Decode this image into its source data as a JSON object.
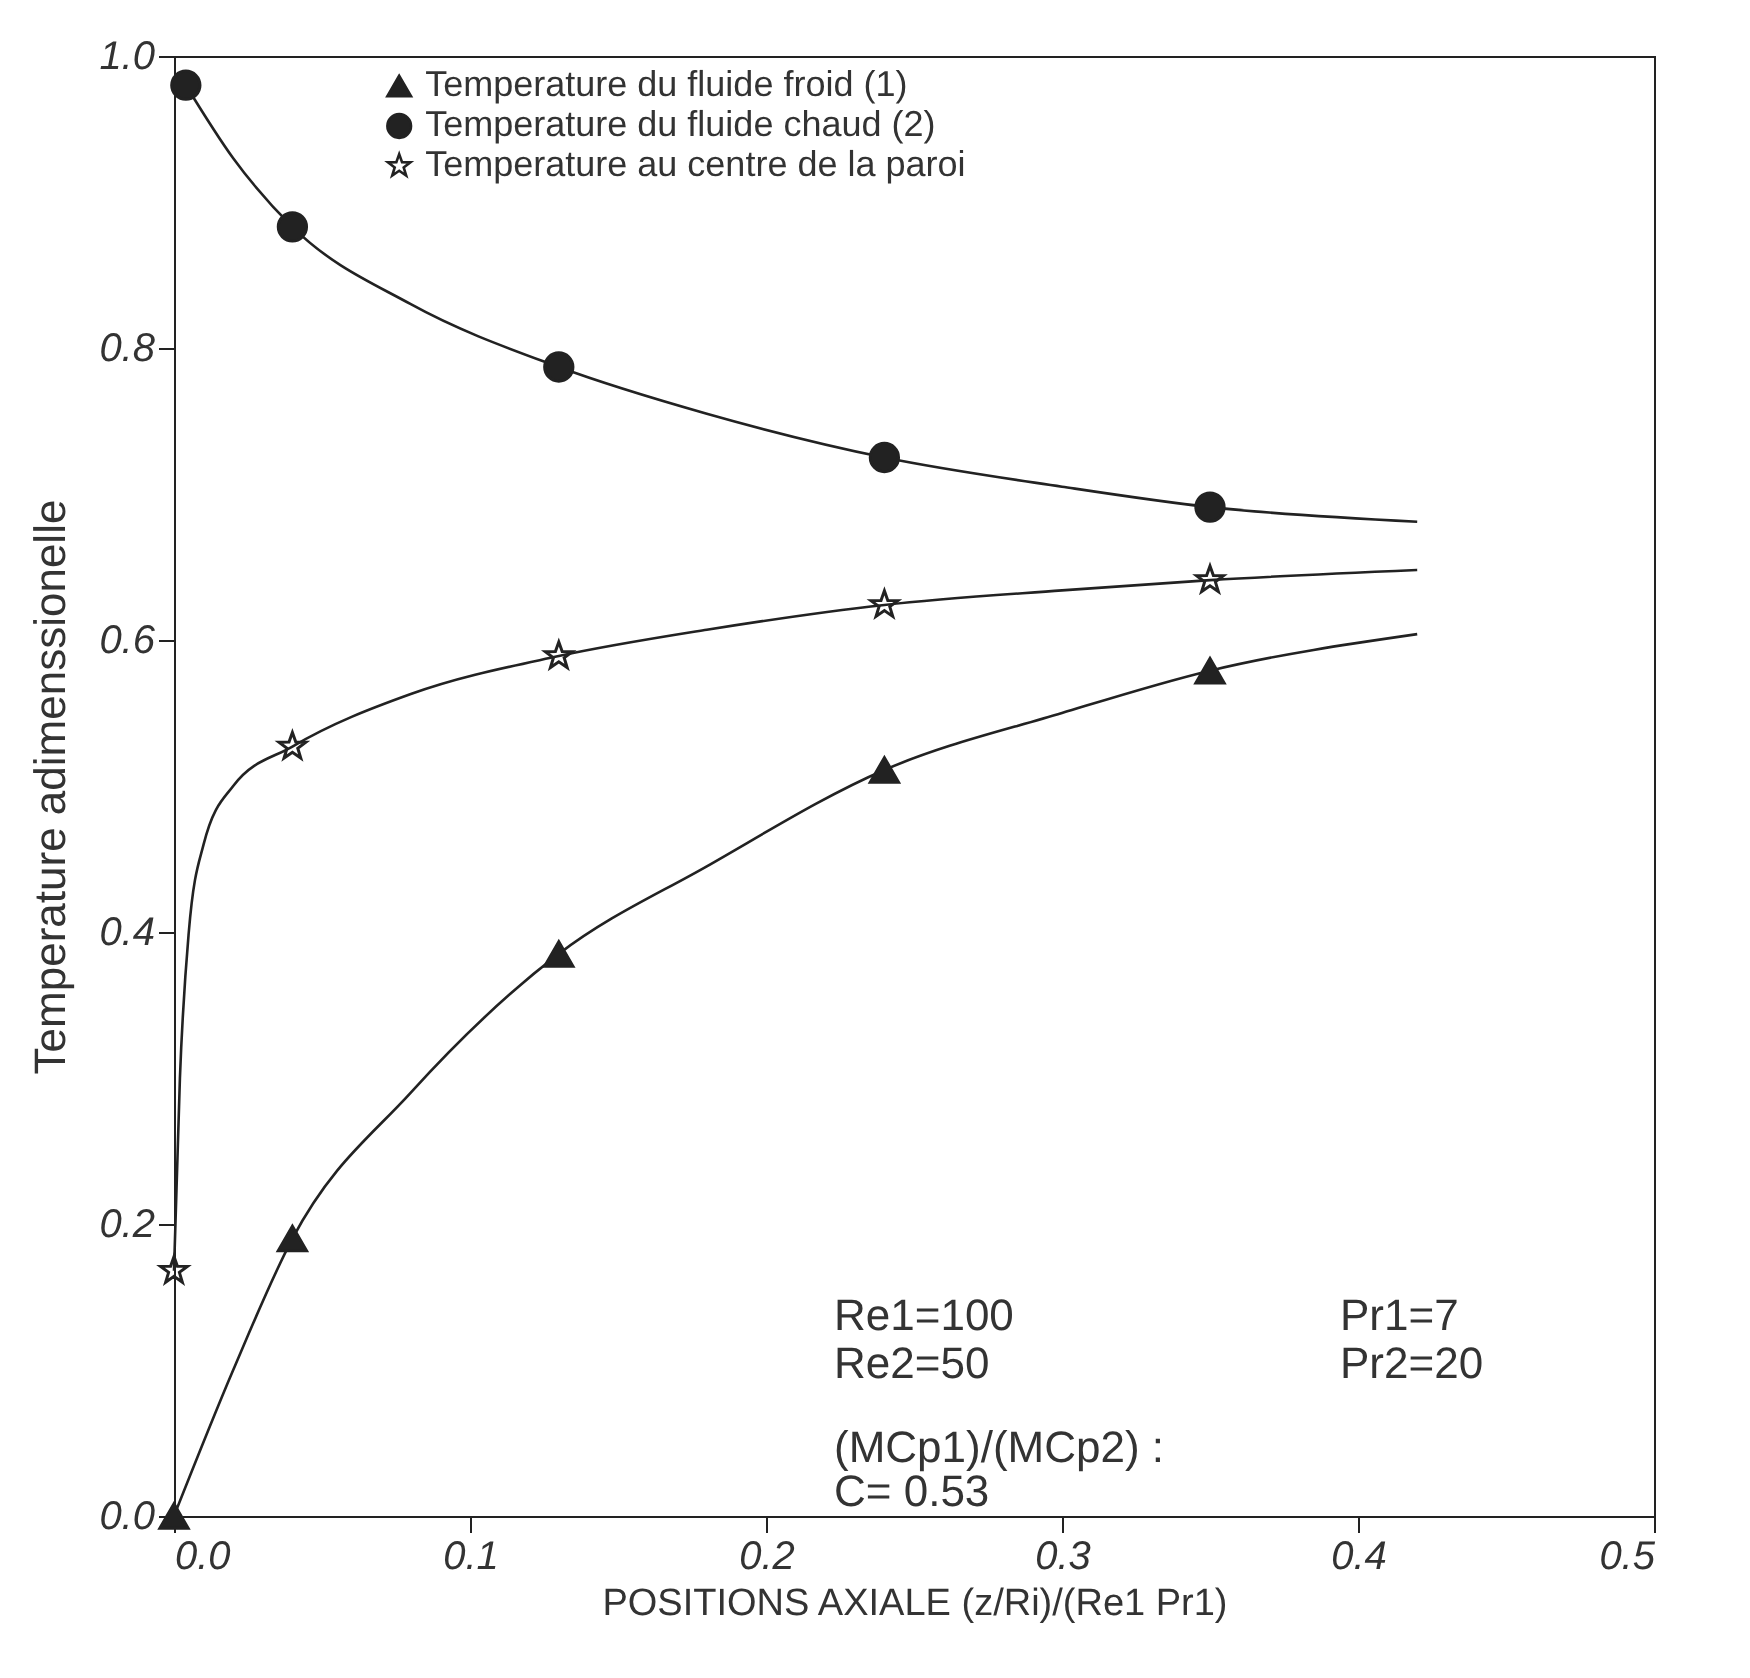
{
  "chart_data": {
    "type": "line",
    "xlabel": "POSITIONS AXIALE (z/Ri)/(Re1 Pr1)",
    "ylabel": "Temperature adimenssionelle",
    "xlim": [
      0,
      0.5
    ],
    "ylim": [
      0,
      1
    ],
    "xticks": [
      {
        "value": 0,
        "label": "0.0"
      },
      {
        "value": 0.1,
        "label": "0.1"
      },
      {
        "value": 0.2,
        "label": "0.2"
      },
      {
        "value": 0.3,
        "label": "0.3"
      },
      {
        "value": 0.4,
        "label": "0.4"
      },
      {
        "value": 0.5,
        "label": "0.5"
      }
    ],
    "yticks": [
      {
        "value": 0,
        "label": "0.0"
      },
      {
        "value": 0.2,
        "label": "0.2"
      },
      {
        "value": 0.4,
        "label": "0.4"
      },
      {
        "value": 0.6,
        "label": "0.6"
      },
      {
        "value": 0.8,
        "label": "0.8"
      },
      {
        "value": 1,
        "label": "1.0"
      }
    ],
    "legend": "top",
    "annotations": [
      "Re1=100",
      "Pr1=7",
      "Re2=50",
      "Pr2=20",
      "(MCp1)/(MCp2) :",
      "C=  0.53"
    ],
    "series": [
      {
        "type": "line",
        "color": "#222222",
        "x": [
          0,
          0.02,
          0.04,
          0.08,
          0.13,
          0.18,
          0.24,
          0.3,
          0.35,
          0.42
        ],
        "values": [
          0,
          0.1,
          0.19,
          0.29,
          0.385,
          0.445,
          0.511,
          0.55,
          0.579,
          0.604
        ]
      },
      {
        "type": "line",
        "color": "#222222",
        "x": [
          0.004,
          0.02,
          0.04,
          0.08,
          0.13,
          0.18,
          0.24,
          0.3,
          0.35,
          0.42
        ],
        "values": [
          0.98,
          0.93,
          0.883,
          0.83,
          0.787,
          0.755,
          0.725,
          0.705,
          0.691,
          0.681
        ]
      },
      {
        "type": "line",
        "color": "#222222",
        "x": [
          0,
          0.002,
          0.005,
          0.01,
          0.02,
          0.04,
          0.08,
          0.13,
          0.18,
          0.24,
          0.3,
          0.35,
          0.42
        ],
        "values": [
          0.168,
          0.3,
          0.4,
          0.46,
          0.5,
          0.527,
          0.563,
          0.589,
          0.607,
          0.624,
          0.634,
          0.641,
          0.648
        ]
      },
      {
        "type": "scatter",
        "name": "Temperature du fluide froid (1)",
        "color": "#222222",
        "marker": "triangle",
        "x": [
          0,
          0.04,
          0.13,
          0.24,
          0.35
        ],
        "values": [
          0,
          0.19,
          0.385,
          0.511,
          0.579
        ]
      },
      {
        "type": "scatter",
        "name": "Temperature du fluide chaud (2)",
        "color": "#222222",
        "marker": "circle",
        "x": [
          0.004,
          0.04,
          0.13,
          0.24,
          0.35
        ],
        "values": [
          0.98,
          0.883,
          0.787,
          0.725,
          0.691
        ]
      },
      {
        "type": "scatter",
        "name": "Temperature au centre de la paroi",
        "color": "#222222",
        "marker": "star",
        "x": [
          0,
          0.04,
          0.13,
          0.24,
          0.35
        ],
        "values": [
          0.168,
          0.527,
          0.589,
          0.624,
          0.641
        ]
      }
    ]
  }
}
